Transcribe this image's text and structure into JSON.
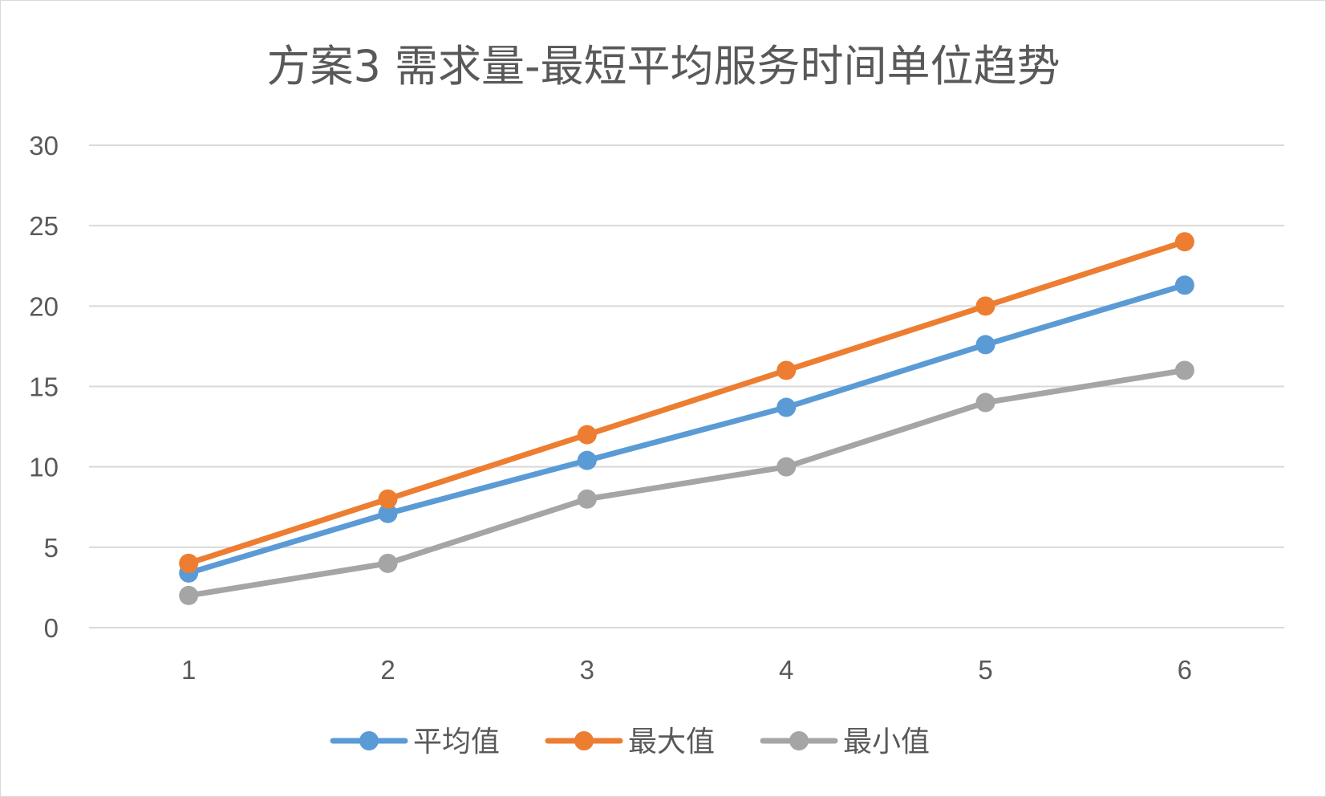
{
  "chart_data": {
    "type": "line",
    "title": "方案3 需求量-最短平均服务时间单位趋势",
    "xlabel": "",
    "ylabel": "",
    "categories": [
      "1",
      "2",
      "3",
      "4",
      "5",
      "6"
    ],
    "ylim": [
      0,
      30
    ],
    "yticks": [
      "0",
      "5",
      "10",
      "15",
      "20",
      "25",
      "30"
    ],
    "grid": true,
    "legend_position": "bottom",
    "series": [
      {
        "name": "平均值",
        "color": "#5B9BD5",
        "values": [
          3.4,
          7.1,
          10.4,
          13.7,
          17.6,
          21.3
        ]
      },
      {
        "name": "最大值",
        "color": "#ED7D31",
        "values": [
          4,
          8,
          12,
          16,
          20,
          24
        ]
      },
      {
        "name": "最小值",
        "color": "#A5A5A5",
        "values": [
          2,
          4,
          8,
          10,
          14,
          16
        ]
      }
    ]
  }
}
